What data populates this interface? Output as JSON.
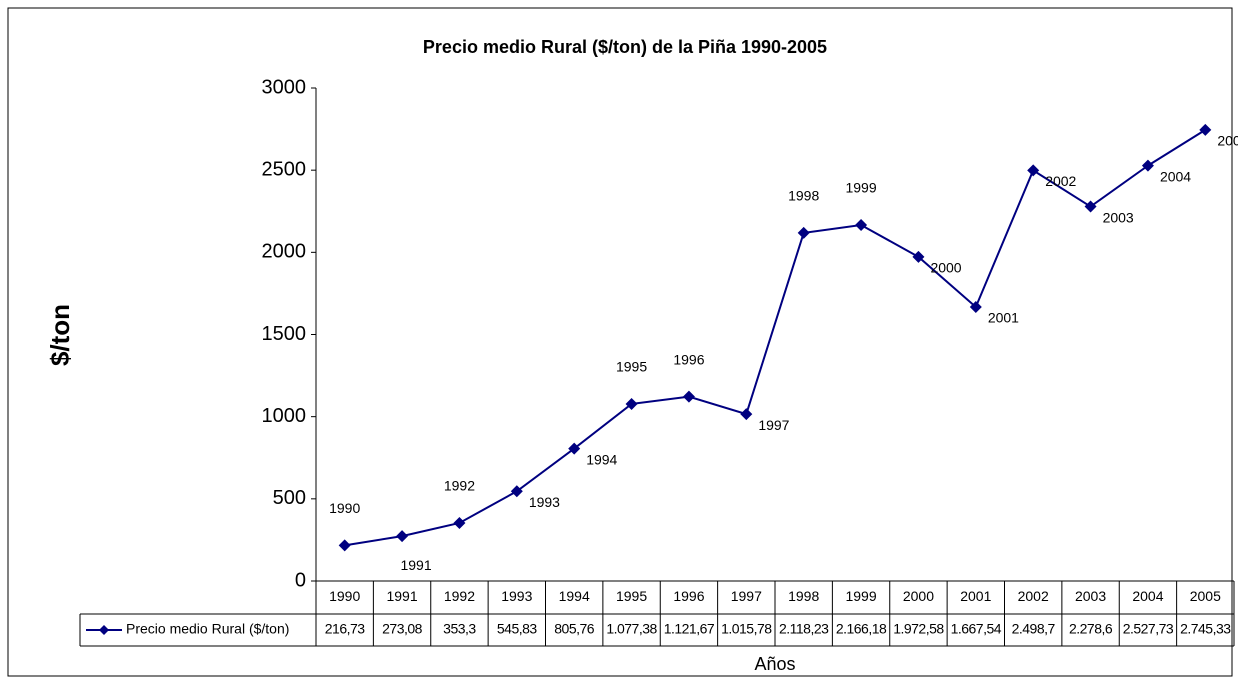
{
  "chart_data": {
    "type": "line",
    "title": "Precio medio Rural ($/ton) de la Piña 1990-2005",
    "y_label": "$/ton",
    "x_label": "Años",
    "categories": [
      "1990",
      "1991",
      "1992",
      "1993",
      "1994",
      "1995",
      "1996",
      "1997",
      "1998",
      "1999",
      "2000",
      "2001",
      "2002",
      "2003",
      "2004",
      "2005"
    ],
    "series": [
      {
        "name": "Precio medio Rural ($/ton)",
        "color": "#000080",
        "values": [
          216.73,
          273.08,
          353.3,
          545.83,
          805.76,
          1077.38,
          1121.67,
          1015.78,
          2118.23,
          2166.18,
          1972.58,
          1667.54,
          2498.7,
          2278.6,
          2527.73,
          2745.33
        ],
        "value_labels": [
          "216,73",
          "273,08",
          "353,3",
          "545,83",
          "805,76",
          "1.077,38",
          "1.121,67",
          "1.015,78",
          "2.118,23",
          "2.166,18",
          "1.972,58",
          "1.667,54",
          "2.498,7",
          "2.278,6",
          "2.527,73",
          "2.745,33"
        ]
      }
    ],
    "ylim": [
      0,
      3000
    ],
    "yticks": [
      0,
      500,
      1000,
      1500,
      2000,
      2500,
      3000
    ],
    "grid": false
  }
}
